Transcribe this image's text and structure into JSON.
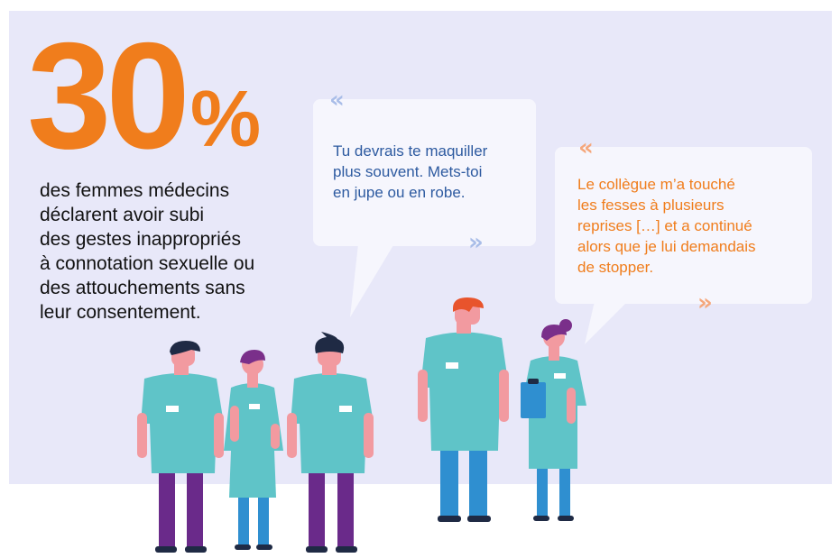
{
  "stat": {
    "number": "30",
    "percent": "%",
    "lines": [
      "des femmes médecins",
      "déclarent avoir subi",
      "des gestes inappropriés",
      "à connotation sexuelle ou",
      "des attouchements sans",
      "leur consentement."
    ]
  },
  "quote1": {
    "open": "«",
    "close": "»",
    "lines": [
      "Tu devrais te maquiller",
      "plus souvent. Mets-toi",
      "en jupe ou en robe."
    ]
  },
  "quote2": {
    "open": "«",
    "close": "»",
    "lines": [
      "Le collègue m’a touché",
      "les fesses à plusieurs",
      "reprises […] et a continué",
      "alors que je lui demandais",
      "de stopper."
    ]
  },
  "colors": {
    "accent_orange": "#f07d1c",
    "quote_blue": "#2d5aa0",
    "quote_blue_marks": "#a9bde8",
    "quote_orange_marks": "#f5a77b",
    "background_panel": "#e8e8f9",
    "scrubs_teal": "#5fc4c8",
    "pants_purple": "#6a2a8a",
    "pants_blue": "#2f8fd0"
  },
  "illustration": {
    "figures": [
      "doctor-man-1",
      "doctor-woman-1",
      "doctor-man-2",
      "doctor-man-3",
      "doctor-woman-2"
    ],
    "prop": "clipboard-icon"
  }
}
